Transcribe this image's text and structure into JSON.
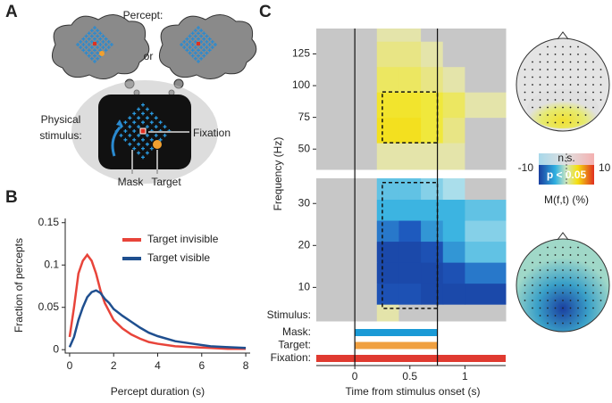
{
  "panels": [
    "A",
    "B",
    "C"
  ],
  "diagram": {
    "percept": "Percept:",
    "or": "or",
    "physical": [
      "Physical",
      "stimulus:"
    ],
    "fixation": "Fixation",
    "mask": "Mask",
    "target": "Target"
  },
  "chart_data": [
    {
      "type": "line",
      "xlabel": "Percept duration (s)",
      "ylabel": "Fraction of percepts",
      "xlim": [
        -0.2,
        8.2
      ],
      "xticks": [
        0,
        2,
        4,
        6,
        8
      ],
      "ylim": [
        -0.004,
        0.155
      ],
      "yticks": [
        0,
        0.05,
        0.1,
        0.15
      ],
      "legend": "top-right",
      "x": [
        0,
        0.2,
        0.4,
        0.6,
        0.8,
        1.0,
        1.2,
        1.4,
        1.6,
        1.8,
        2.0,
        2.4,
        2.8,
        3.2,
        3.6,
        4.0,
        4.8,
        5.6,
        6.4,
        7.2,
        8
      ],
      "series": [
        {
          "name": "Target invisible",
          "color": "#e8443a",
          "values": [
            0.015,
            0.05,
            0.09,
            0.105,
            0.112,
            0.105,
            0.09,
            0.07,
            0.055,
            0.045,
            0.035,
            0.025,
            0.018,
            0.013,
            0.009,
            0.007,
            0.004,
            0.003,
            0.002,
            0.001,
            0.001
          ]
        },
        {
          "name": "Target visible",
          "color": "#1f4f8f",
          "values": [
            0.003,
            0.015,
            0.035,
            0.05,
            0.062,
            0.068,
            0.07,
            0.067,
            0.06,
            0.055,
            0.048,
            0.04,
            0.033,
            0.026,
            0.02,
            0.016,
            0.01,
            0.007,
            0.004,
            0.003,
            0.002
          ]
        }
      ]
    },
    {
      "type": "heatmap",
      "xlabel": "Time from stimulus onset (s)",
      "ylabel": "Frequency (Hz)",
      "xlim": [
        -0.35,
        1.37
      ],
      "xticks": [
        0,
        0.5,
        1
      ],
      "event_lines": [
        0,
        0.75
      ],
      "x_edges": [
        -0.35,
        0,
        0.2,
        0.4,
        0.6,
        0.8,
        1.0,
        1.37
      ],
      "panels": [
        {
          "ylim": [
            34,
            145
          ],
          "yticks": [
            50,
            75,
            100,
            125
          ],
          "y_edges": [
            34,
            55,
            75,
            95,
            115,
            135,
            145
          ],
          "values": [
            [
              0,
              0,
              1,
              1,
              1,
              1,
              0
            ],
            [
              0,
              0,
              6,
              6,
              4,
              2,
              0
            ],
            [
              0,
              0,
              5,
              5,
              4,
              3,
              1
            ],
            [
              0,
              0,
              3,
              3,
              2,
              1,
              0
            ],
            [
              0,
              0,
              2,
              2,
              1,
              0,
              0
            ],
            [
              0,
              0,
              1,
              1,
              0,
              0,
              0
            ]
          ],
          "roi": {
            "t": [
              0.25,
              0.75
            ],
            "f": [
              55,
              95
            ]
          }
        },
        {
          "ylim": [
            2,
            36
          ],
          "yticks": [
            10,
            20,
            30
          ],
          "y_edges": [
            2,
            6,
            11,
            16,
            21,
            26,
            31,
            36
          ],
          "values": [
            [
              0,
              0,
              1,
              0,
              0,
              0,
              0
            ],
            [
              0,
              0,
              -8,
              -8,
              -9,
              -9,
              -9
            ],
            [
              0,
              0,
              -9,
              -9,
              -9,
              -8,
              -6
            ],
            [
              0,
              0,
              -9,
              -9,
              -8,
              -5,
              -3
            ],
            [
              0,
              0,
              -6,
              -7,
              -5,
              -4,
              -2
            ],
            [
              0,
              0,
              -4,
              -4,
              -4,
              -4,
              -3
            ],
            [
              0,
              0,
              -3,
              -3,
              -2,
              -1,
              0
            ]
          ],
          "roi": {
            "t": [
              0.25,
              0.75
            ],
            "f": [
              5,
              35
            ]
          }
        }
      ],
      "stimulus": {
        "label": "Stimulus:",
        "bars": [
          {
            "name": "Mask:",
            "start": 0,
            "end": 0.75,
            "color": "#1a9ad6"
          },
          {
            "name": "Target:",
            "start": 0,
            "end": 0.75,
            "color": "#f0a040"
          },
          {
            "name": "Fixation:",
            "start": -0.35,
            "end": 1.37,
            "color": "#e03a30"
          }
        ]
      },
      "colorbar": {
        "min": -10,
        "max": 10,
        "ns": "n.s.",
        "sig": "p < 0.05",
        "label": "M(f,t) (%)"
      }
    }
  ]
}
